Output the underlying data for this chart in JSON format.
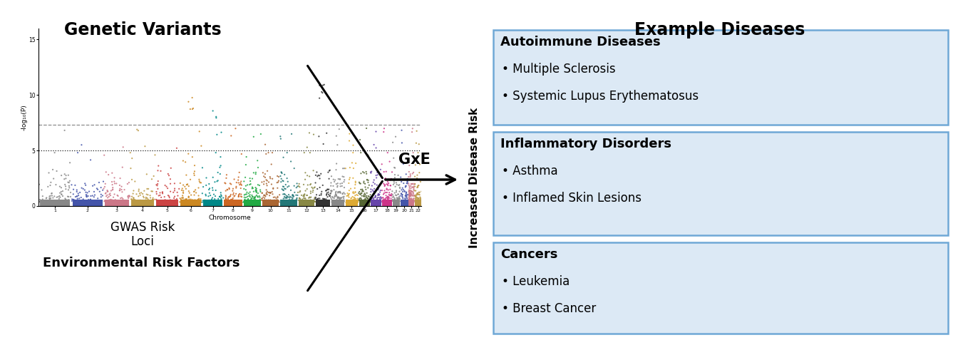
{
  "title_left": "Genetic Variants",
  "title_right": "Example Diseases",
  "gwas_label": "GWAS Risk\nLoci",
  "chromosome_label": "Chromosome",
  "env_label": "Environmental Risk Factors",
  "gxe_label": "GxE",
  "yaxis_label": "-log₁₀(P)",
  "increased_risk_label": "Increased Disease Risk",
  "boxes": [
    {
      "title": "Autoimmune Diseases",
      "bullets": [
        "• Multiple Sclerosis",
        "• Systemic Lupus Erythematosus"
      ]
    },
    {
      "title": "Inflammatory Disorders",
      "bullets": [
        "• Asthma",
        "• Inflamed Skin Lesions"
      ]
    },
    {
      "title": "Cancers",
      "bullets": [
        "• Leukemia",
        "• Breast Cancer"
      ]
    }
  ],
  "box_facecolor": "#dce9f5",
  "box_edgecolor": "#6fa8d6",
  "chr_colors": [
    "#888888",
    "#4455aa",
    "#cc7788",
    "#bb9944",
    "#cc4444",
    "#cc8822",
    "#008888",
    "#cc6622",
    "#22aa44",
    "#aa6633",
    "#227777",
    "#888844",
    "#333333",
    "#888888",
    "#ddaa33",
    "#556633",
    "#6644aa",
    "#cc3388"
  ],
  "ylim_max": 16,
  "hline_genome": 7.3,
  "hline_suggest": 5.0,
  "bg_color": "#ffffff",
  "n_chrs": 22,
  "chr_sizes": [
    248,
    242,
    198,
    190,
    181,
    171,
    159,
    146,
    141,
    135,
    135,
    133,
    115,
    107,
    102,
    90,
    83,
    80,
    59,
    63,
    47,
    51
  ]
}
